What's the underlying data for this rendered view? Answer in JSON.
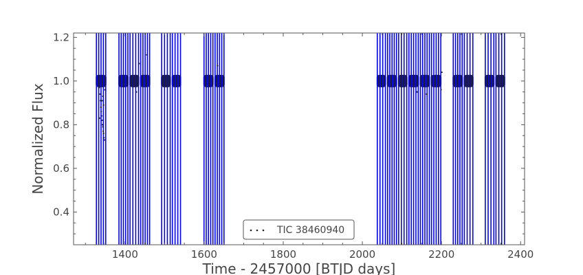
{
  "chart_data": {
    "type": "scatter",
    "title": "",
    "xlabel": "Time - 2457000 [BTJD days]",
    "ylabel": "Normalized Flux",
    "xlim": [
      1270,
      2410
    ],
    "ylim": [
      0.25,
      1.22
    ],
    "xticks": [
      1400,
      1600,
      1800,
      2000,
      2200,
      2400
    ],
    "yticks": [
      0.4,
      0.6,
      0.8,
      1.0,
      1.2
    ],
    "xtick_labels": [
      "1400",
      "1600",
      "1800",
      "2000",
      "2200",
      "2400"
    ],
    "ytick_labels": [
      "0.4",
      "0.6",
      "0.8",
      "1.0",
      "1.2"
    ],
    "grid": false,
    "legend": {
      "position": "bottom-center",
      "entries": [
        "TIC 38460940"
      ]
    },
    "series": [
      {
        "name": "TIC 38460940",
        "marker": "dots",
        "color": "#222222",
        "errorbar_color": "#0000ff",
        "flux_level": 1.0,
        "observing_segments": [
          {
            "x_start": 1326,
            "x_end": 1353
          },
          {
            "x_start": 1383,
            "x_end": 1409
          },
          {
            "x_start": 1411,
            "x_end": 1436
          },
          {
            "x_start": 1438,
            "x_end": 1464
          },
          {
            "x_start": 1491,
            "x_end": 1516
          },
          {
            "x_start": 1518,
            "x_end": 1542
          },
          {
            "x_start": 1598,
            "x_end": 1624
          },
          {
            "x_start": 1626,
            "x_end": 1652
          },
          {
            "x_start": 2036,
            "x_end": 2060
          },
          {
            "x_start": 2062,
            "x_end": 2088
          },
          {
            "x_start": 2090,
            "x_end": 2114
          },
          {
            "x_start": 2116,
            "x_end": 2143
          },
          {
            "x_start": 2145,
            "x_end": 2171
          },
          {
            "x_start": 2173,
            "x_end": 2200
          },
          {
            "x_start": 2228,
            "x_end": 2254
          },
          {
            "x_start": 2256,
            "x_end": 2281
          },
          {
            "x_start": 2309,
            "x_end": 2334
          },
          {
            "x_start": 2336,
            "x_end": 2361
          }
        ],
        "outliers": [
          {
            "x": 1335,
            "y": 0.97
          },
          {
            "x": 1337,
            "y": 0.94
          },
          {
            "x": 1338,
            "y": 0.91
          },
          {
            "x": 1339,
            "y": 0.88
          },
          {
            "x": 1340,
            "y": 0.86
          },
          {
            "x": 1341,
            "y": 0.84
          },
          {
            "x": 1342,
            "y": 0.82
          },
          {
            "x": 1343,
            "y": 0.8
          },
          {
            "x": 1344,
            "y": 0.79
          },
          {
            "x": 1345,
            "y": 0.77
          },
          {
            "x": 1346,
            "y": 0.76
          },
          {
            "x": 1347,
            "y": 0.74
          },
          {
            "x": 1348,
            "y": 0.73
          },
          {
            "x": 1346,
            "y": 0.89
          },
          {
            "x": 1344,
            "y": 0.93
          },
          {
            "x": 1349,
            "y": 0.96
          },
          {
            "x": 1336,
            "y": 0.83
          },
          {
            "x": 1342,
            "y": 0.91
          },
          {
            "x": 1455,
            "y": 1.12
          },
          {
            "x": 1436,
            "y": 1.08
          },
          {
            "x": 1429,
            "y": 0.95
          },
          {
            "x": 1634,
            "y": 1.07
          },
          {
            "x": 2162,
            "y": 0.94
          },
          {
            "x": 2138,
            "y": 0.95
          },
          {
            "x": 2199,
            "y": 0.96
          },
          {
            "x": 2201,
            "y": 1.04
          }
        ]
      }
    ]
  }
}
